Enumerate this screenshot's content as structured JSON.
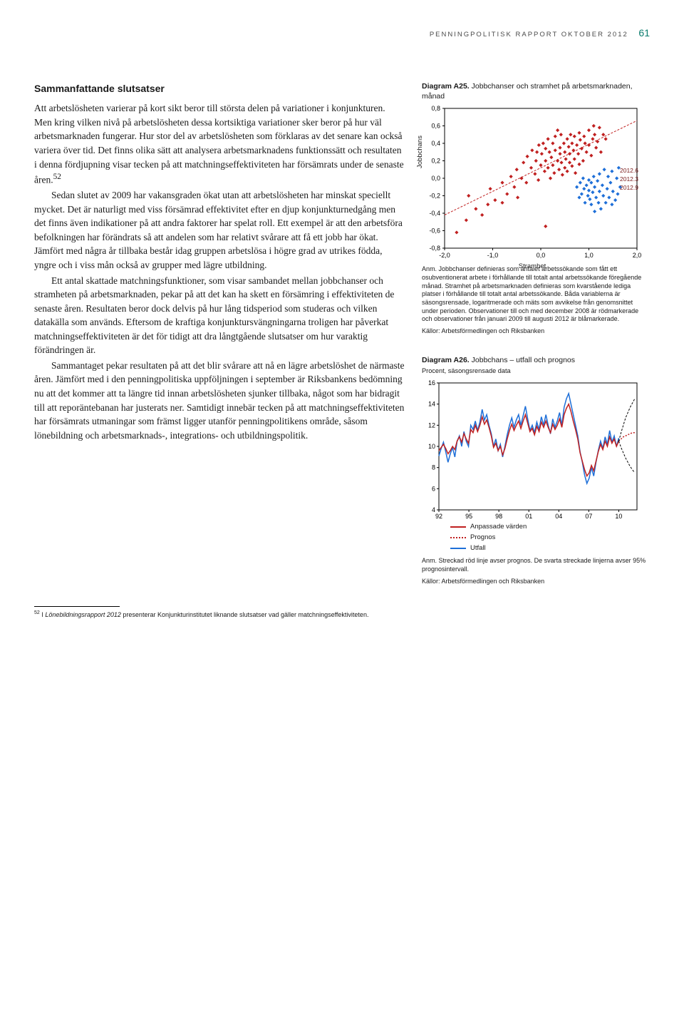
{
  "header": {
    "title": "PENNINGPOLITISK RAPPORT OKTOBER 2012",
    "page": "61"
  },
  "section_heading": "Sammanfattande slutsatser",
  "body": {
    "p1": "Att arbetslösheten varierar på kort sikt beror till största delen på variationer i konjunkturen. Men kring vilken nivå på arbetslösheten dessa kortsiktiga variationer sker beror på hur väl arbetsmarknaden fungerar. Hur stor del av arbetslösheten som förklaras av det senare kan också variera över tid. Det finns olika sätt att analysera arbetsmarknadens funktionssätt och resultaten i denna fördjupning visar tecken på att matchningseffektiviteten har försämrats under de senaste åren.",
    "p1_sup": "52",
    "p2": "Sedan slutet av 2009 har vakansgraden ökat utan att arbetslösheten har minskat speciellt mycket. Det är naturligt med viss försämrad effektivitet efter en djup konjunkturnedgång men det finns även indikationer på att andra faktorer har spelat roll. Ett exempel är att den arbetsföra befolkningen har förändrats så att andelen som har relativt svårare att få ett jobb har ökat. Jämfört med några år tillbaka består idag gruppen arbetslösa i högre grad av utrikes födda, yngre och i viss mån också av grupper med lägre utbildning.",
    "p3": "Ett antal skattade matchningsfunktioner, som visar sambandet mellan jobbchanser och stramheten på arbetsmarknaden, pekar på att det kan ha skett en försämring i effektiviteten de senaste åren. Resultaten beror dock delvis på hur lång tidsperiod som studeras och vilken datakälla som används. Eftersom de kraftiga konjunktursvängningarna troligen har påverkat matchningseffektiviteten är det för tidigt att dra långtgående slutsatser om hur varaktig förändringen är.",
    "p4": "Sammantaget pekar resultaten på att det blir svårare att nå en lägre arbetslöshet de närmaste åren. Jämfört med i den penningpolitiska uppföljningen i september är Riksbankens bedömning nu att det kommer att ta längre tid innan arbetslösheten sjunker tillbaka, något som har bidragit till att reporäntebanan har justerats ner. Samtidigt innebär tecken på att matchningseffektiviteten har försämrats utmaningar som främst ligger utanför penningpolitikens område, såsom lönebildning och arbetsmarknads-, integrations- och utbildningspolitik."
  },
  "footnote": {
    "num": "52",
    "text_pre": "I ",
    "text_ital": "Lönebildningsrapport 2012",
    "text_post": " presenterar Konjunkturinstitutet liknande slutsatser vad gäller matchningseffektiviteten."
  },
  "figA25": {
    "title_b": "Diagram A25.",
    "title_rest": " Jobbchanser och stramhet på arbetsmarknaden, månad",
    "ylabel": "Jobbchans",
    "xlabel": "Stramhet",
    "xlim": [
      -2.0,
      2.0
    ],
    "ylim": [
      -0.8,
      0.8
    ],
    "xticks": [
      "-2,0",
      "-1,0",
      "0,0",
      "1,0",
      "2,0"
    ],
    "yticks": [
      "-0,8",
      "-0,6",
      "-0,4",
      "-0,2",
      "0,0",
      "0,2",
      "0,4",
      "0,6",
      "0,8"
    ],
    "bg": "#ffffff",
    "axis_color": "#000000",
    "fit_line_color": "#c02020",
    "red_point_color": "#c02020",
    "blue_point_color": "#1e6fd8",
    "annotations": [
      "2012.6",
      "2012.3",
      "2012.9"
    ],
    "red_points": [
      [
        -1.75,
        -0.62
      ],
      [
        -1.55,
        -0.48
      ],
      [
        -1.5,
        -0.2
      ],
      [
        -1.35,
        -0.35
      ],
      [
        -1.22,
        -0.42
      ],
      [
        -1.1,
        -0.3
      ],
      [
        -1.05,
        -0.12
      ],
      [
        -0.95,
        -0.25
      ],
      [
        -0.8,
        -0.05
      ],
      [
        -0.8,
        -0.28
      ],
      [
        -0.7,
        -0.18
      ],
      [
        -0.62,
        0.02
      ],
      [
        -0.55,
        -0.1
      ],
      [
        -0.5,
        0.1
      ],
      [
        -0.48,
        -0.22
      ],
      [
        -0.4,
        0.0
      ],
      [
        -0.36,
        0.18
      ],
      [
        -0.3,
        -0.05
      ],
      [
        -0.28,
        0.25
      ],
      [
        -0.2,
        0.12
      ],
      [
        -0.18,
        0.32
      ],
      [
        -0.12,
        0.05
      ],
      [
        -0.1,
        0.2
      ],
      [
        -0.08,
        0.3
      ],
      [
        -0.05,
        -0.02
      ],
      [
        -0.04,
        0.38
      ],
      [
        0.0,
        0.15
      ],
      [
        0.02,
        0.28
      ],
      [
        0.05,
        0.4
      ],
      [
        0.08,
        0.08
      ],
      [
        0.1,
        0.2
      ],
      [
        0.1,
        0.34
      ],
      [
        0.15,
        0.12
      ],
      [
        0.15,
        0.45
      ],
      [
        0.18,
        0.3
      ],
      [
        0.2,
        0.0
      ],
      [
        0.22,
        0.24
      ],
      [
        0.25,
        0.15
      ],
      [
        0.25,
        0.4
      ],
      [
        0.28,
        0.06
      ],
      [
        0.3,
        0.32
      ],
      [
        0.3,
        0.48
      ],
      [
        0.35,
        0.2
      ],
      [
        0.38,
        0.1
      ],
      [
        0.4,
        0.35
      ],
      [
        0.4,
        0.28
      ],
      [
        0.42,
        0.5
      ],
      [
        0.43,
        0.18
      ],
      [
        0.45,
        0.04
      ],
      [
        0.48,
        0.4
      ],
      [
        0.5,
        0.12
      ],
      [
        0.5,
        0.3
      ],
      [
        0.52,
        0.22
      ],
      [
        0.55,
        0.45
      ],
      [
        0.55,
        0.08
      ],
      [
        0.58,
        0.36
      ],
      [
        0.6,
        0.18
      ],
      [
        0.6,
        0.28
      ],
      [
        0.62,
        0.5
      ],
      [
        0.65,
        0.4
      ],
      [
        0.65,
        0.14
      ],
      [
        0.68,
        0.32
      ],
      [
        0.7,
        0.48
      ],
      [
        0.7,
        0.22
      ],
      [
        0.72,
        0.06
      ],
      [
        0.75,
        0.38
      ],
      [
        0.78,
        0.28
      ],
      [
        0.8,
        0.52
      ],
      [
        0.8,
        0.16
      ],
      [
        0.82,
        0.44
      ],
      [
        0.85,
        0.34
      ],
      [
        0.88,
        0.2
      ],
      [
        0.9,
        0.48
      ],
      [
        0.92,
        0.4
      ],
      [
        0.95,
        0.3
      ],
      [
        1.0,
        0.55
      ],
      [
        1.0,
        0.38
      ],
      [
        1.05,
        0.26
      ],
      [
        1.08,
        0.45
      ],
      [
        1.1,
        0.6
      ],
      [
        1.12,
        0.5
      ],
      [
        1.15,
        0.35
      ],
      [
        1.18,
        0.42
      ],
      [
        1.22,
        0.58
      ],
      [
        1.25,
        0.3
      ],
      [
        1.3,
        0.5
      ],
      [
        1.35,
        0.45
      ],
      [
        0.1,
        -0.55
      ],
      [
        0.35,
        0.55
      ]
    ],
    "blue_points": [
      [
        0.75,
        -0.1
      ],
      [
        0.8,
        -0.22
      ],
      [
        0.82,
        -0.05
      ],
      [
        0.85,
        -0.18
      ],
      [
        0.88,
        0.0
      ],
      [
        0.9,
        -0.12
      ],
      [
        0.92,
        -0.28
      ],
      [
        0.95,
        -0.08
      ],
      [
        0.98,
        -0.2
      ],
      [
        1.0,
        -0.02
      ],
      [
        1.0,
        -0.14
      ],
      [
        1.02,
        -0.24
      ],
      [
        1.05,
        -0.05
      ],
      [
        1.05,
        -0.3
      ],
      [
        1.08,
        -0.16
      ],
      [
        1.1,
        0.02
      ],
      [
        1.12,
        -0.1
      ],
      [
        1.12,
        -0.38
      ],
      [
        1.15,
        -0.22
      ],
      [
        1.18,
        -0.03
      ],
      [
        1.2,
        -0.28
      ],
      [
        1.22,
        0.05
      ],
      [
        1.22,
        -0.15
      ],
      [
        1.25,
        -0.35
      ],
      [
        1.28,
        -0.08
      ],
      [
        1.3,
        -0.2
      ],
      [
        1.32,
        0.1
      ],
      [
        1.35,
        -0.28
      ],
      [
        1.38,
        -0.12
      ],
      [
        1.4,
        0.02
      ],
      [
        1.42,
        -0.22
      ],
      [
        1.45,
        -0.05
      ],
      [
        1.48,
        -0.3
      ],
      [
        1.48,
        0.08
      ],
      [
        1.5,
        -0.15
      ],
      [
        1.55,
        -0.25
      ],
      [
        1.58,
        0.0
      ],
      [
        1.6,
        -0.18
      ],
      [
        1.62,
        0.12
      ],
      [
        1.65,
        -0.1
      ]
    ],
    "fit_slope": 0.27,
    "fit_intercept": 0.12,
    "anm": "Anm. Jobbchanser definieras som antalet arbetssökande som fått ett osubventionerat arbete i förhållande till totalt antal arbetssökande föregående månad. Stramhet på arbetsmarknaden definieras som kvarstående lediga platser i förhållande till totalt antal arbetssökande. Båda variablerna är säsongsrensade, logaritmerade och mäts som avvikelse från genomsnittet under perioden. Observationer till och med december 2008 är rödmarkerade och observationer från januari 2009 till augusti 2012 är blåmarkerade.",
    "source": "Källor: Arbetsförmedlingen och Riksbanken"
  },
  "figA26": {
    "title_b": "Diagram A26.",
    "title_rest": " Jobbchans – utfall och prognos",
    "subtitle": "Procent, säsongsrensade data",
    "ylim": [
      4,
      16
    ],
    "yticks": [
      "4",
      "6",
      "8",
      "10",
      "12",
      "14",
      "16"
    ],
    "xticks": [
      "92",
      "95",
      "98",
      "01",
      "04",
      "07",
      "10"
    ],
    "bg": "#ffffff",
    "axis_color": "#000000",
    "colors": {
      "fitted": "#c02020",
      "forecast": "#c02020",
      "actual": "#1e6fd8",
      "ci": "#000000"
    },
    "legend": [
      {
        "label": "Anpassade värden",
        "color": "#c02020",
        "style": "solid"
      },
      {
        "label": "Prognos",
        "color": "#c02020",
        "style": "dotted"
      },
      {
        "label": "Utfall",
        "color": "#1e6fd8",
        "style": "solid"
      }
    ],
    "anm": "Anm. Streckad röd linje avser prognos. De svarta streckade linjerna avser 95% prognosintervall.",
    "source": "Källor: Arbetsförmedlingen och Riksbanken",
    "actual": [
      9.1,
      9.8,
      10.4,
      9.5,
      8.5,
      9.3,
      9.9,
      9.0,
      10.5,
      11.0,
      10.0,
      11.4,
      10.5,
      10.0,
      12.0,
      11.6,
      12.4,
      11.5,
      12.3,
      13.5,
      12.5,
      13.0,
      12.0,
      11.2,
      10.0,
      10.7,
      9.6,
      10.2,
      9.0,
      10.0,
      11.1,
      12.0,
      12.7,
      11.8,
      12.5,
      13.0,
      12.0,
      12.9,
      13.8,
      12.6,
      11.5,
      12.0,
      11.3,
      12.3,
      11.6,
      12.8,
      12.0,
      13.0,
      12.0,
      11.2,
      12.6,
      11.8,
      12.4,
      13.2,
      12.0,
      13.7,
      14.5,
      15.0,
      14.0,
      13.0,
      12.0,
      11.0,
      9.5,
      8.5,
      7.3,
      6.5,
      7.0,
      8.0,
      7.2,
      8.5,
      9.6,
      10.5,
      9.8,
      10.9,
      10.2,
      11.5,
      10.4,
      11.0,
      10.0,
      10.8
    ],
    "fitted": [
      9.6,
      9.9,
      10.2,
      9.8,
      9.3,
      9.6,
      10.0,
      9.7,
      10.5,
      10.9,
      10.4,
      11.2,
      10.7,
      10.3,
      11.6,
      11.3,
      12.0,
      11.4,
      12.0,
      12.8,
      12.1,
      12.5,
      11.8,
      11.0,
      9.9,
      10.3,
      9.6,
      10.0,
      9.2,
      9.8,
      10.7,
      11.5,
      12.1,
      11.5,
      12.0,
      12.4,
      11.7,
      12.4,
      13.0,
      12.2,
      11.4,
      11.7,
      11.1,
      11.9,
      11.4,
      12.3,
      11.8,
      12.4,
      11.8,
      11.3,
      12.1,
      11.6,
      12.0,
      12.6,
      11.8,
      13.0,
      13.6,
      14.0,
      13.3,
      12.4,
      11.6,
      10.7,
      9.4,
      8.6,
      7.8,
      7.2,
      7.5,
      8.2,
      7.7,
      8.6,
      9.5,
      10.2,
      9.7,
      10.5,
      10.0,
      10.9,
      10.3,
      10.7,
      10.0,
      10.5
    ],
    "forecast": [
      10.5,
      10.7,
      10.9,
      11.0,
      11.1,
      11.2,
      11.3,
      11.3
    ],
    "ci_hi": [
      10.5,
      11.3,
      12.0,
      12.7,
      13.2,
      13.7,
      14.1,
      14.5
    ],
    "ci_lo": [
      10.5,
      9.9,
      9.4,
      8.9,
      8.5,
      8.1,
      7.8,
      7.5
    ]
  }
}
